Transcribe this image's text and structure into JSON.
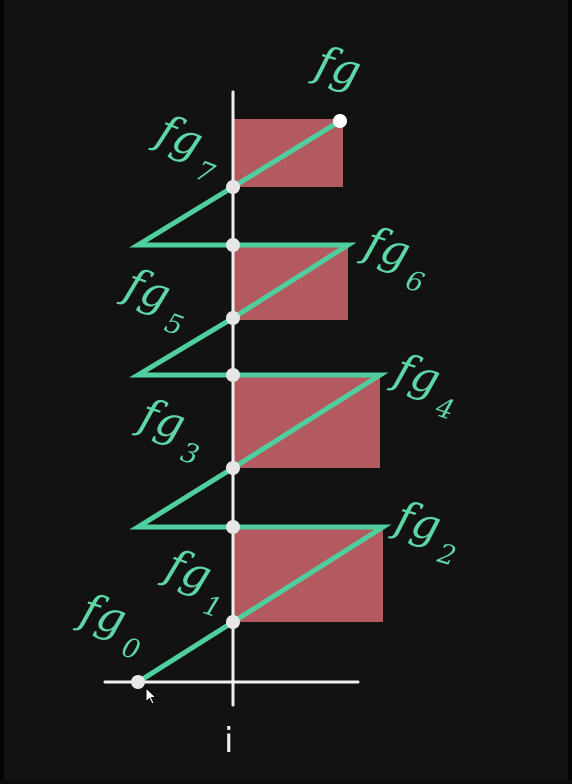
{
  "colors": {
    "background": "#121212",
    "rect_fill": "#b25a5f",
    "path_stroke": "#4fcf9d",
    "label_color": "#5ed6a6",
    "axis_color": "#f0f0f0",
    "point_fill": "#e6e6e6"
  },
  "axis": {
    "x_label": "i"
  },
  "labels": {
    "fg": "fg",
    "fg0": {
      "base": "fg",
      "sub": "0"
    },
    "fg1": {
      "base": "fg",
      "sub": "1"
    },
    "fg2": {
      "base": "fg",
      "sub": "2"
    },
    "fg3": {
      "base": "fg",
      "sub": "3"
    },
    "fg4": {
      "base": "fg",
      "sub": "4"
    },
    "fg5": {
      "base": "fg",
      "sub": "5"
    },
    "fg6": {
      "base": "fg",
      "sub": "6"
    },
    "fg7": {
      "base": "fg",
      "sub": "7"
    }
  },
  "cursor": {
    "icon": "mouse-pointer-icon"
  }
}
